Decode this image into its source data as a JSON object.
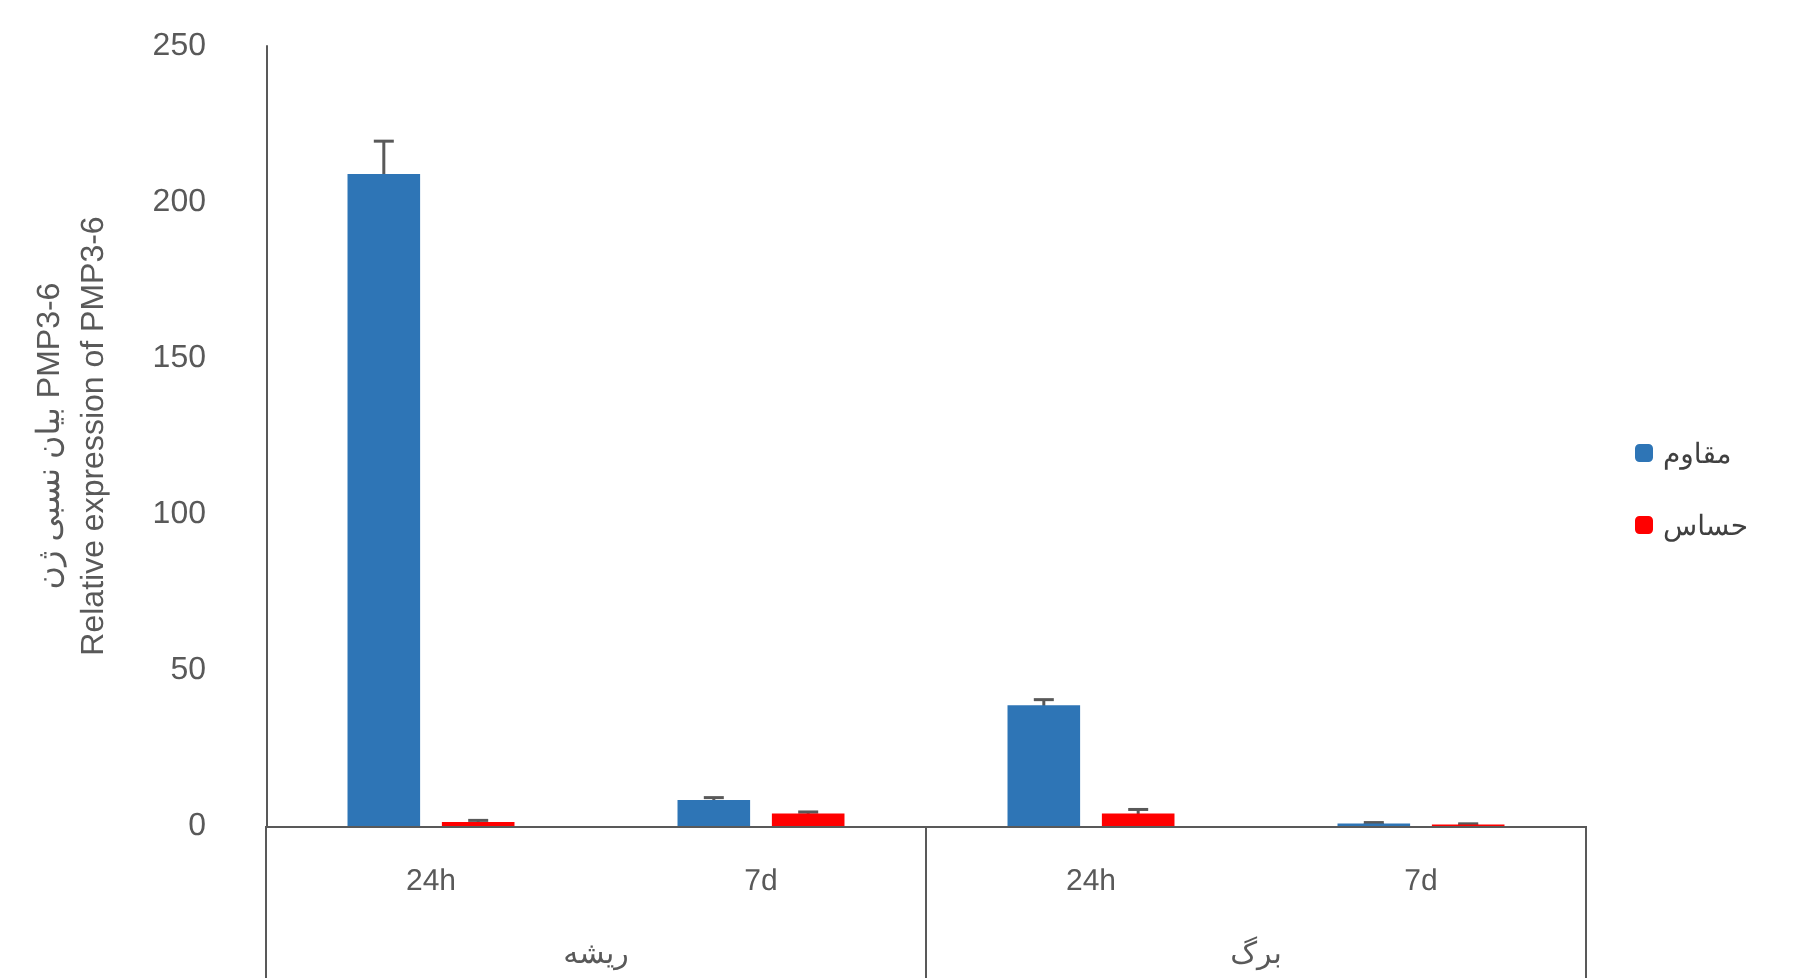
{
  "chart_data": {
    "type": "bar",
    "ylabel": "بیان نسبی ژن PMP3-6\nRelative expression of PMP3-6",
    "categories": [
      "24h",
      "7d",
      "24h",
      "7d"
    ],
    "series": [
      {
        "name": "مقاوم",
        "color": "#2e75b6",
        "values": [
          209,
          8.3,
          38.7,
          0.8
        ],
        "errors": [
          10.5,
          0.8,
          1.8,
          0.3
        ]
      },
      {
        "name": "حساس",
        "color": "#ff0000",
        "values": [
          1.3,
          4,
          4,
          0.5
        ],
        "errors": [
          0.5,
          0.5,
          1.3,
          0.2
        ]
      }
    ],
    "annotations": [
      "ریشه",
      "برگ"
    ],
    "ylim": [
      0,
      250
    ],
    "yticks": [
      0,
      50,
      100,
      150,
      200,
      250
    ],
    "grid": false,
    "legend": "right"
  }
}
